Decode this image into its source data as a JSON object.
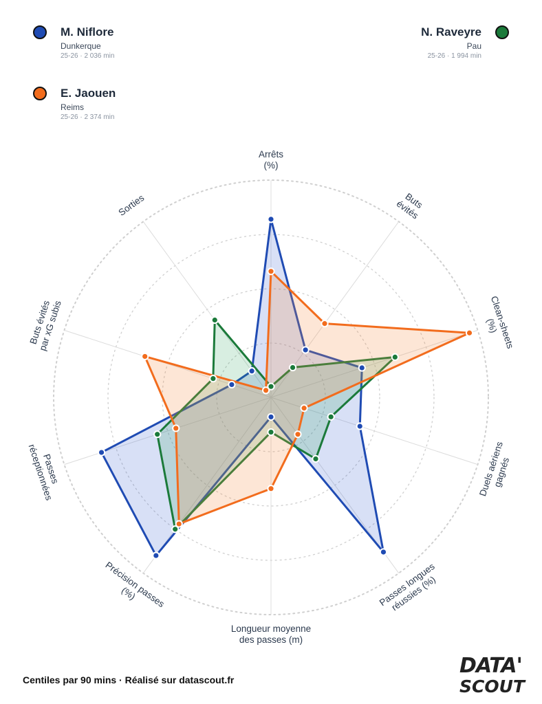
{
  "players": [
    {
      "id": "p1",
      "name": "M. Niflore",
      "club": "Dunkerque",
      "meta": "25-26 · 2 036 min",
      "color": "#1f4bb3",
      "fill": "rgba(60,100,210,0.20)"
    },
    {
      "id": "p2",
      "name": "N. Raveyre",
      "club": "Pau",
      "meta": "25-26 · 1 994 min",
      "color": "#1b7a3a",
      "fill": "rgba(40,160,90,0.18)"
    },
    {
      "id": "p3",
      "name": "E. Jaouen",
      "club": "Reims",
      "meta": "25-26 · 2 374 min",
      "color": "#f26c1d",
      "fill": "rgba(245,140,70,0.22)"
    }
  ],
  "chart_data": {
    "type": "radar",
    "axes": [
      [
        "Arrêts",
        "(%)"
      ],
      [
        "Buts",
        "évités"
      ],
      [
        "Clean-sheets",
        "(%)"
      ],
      [
        "Duels aériens",
        "gagnés"
      ],
      [
        "Passes longues",
        "réussies (%)"
      ],
      [
        "Longueur moyenne",
        "des passes (m)"
      ],
      [
        "Précision passes",
        "(%)"
      ],
      [
        "Passes",
        "réceptionnées"
      ],
      [
        "Buts évités",
        "par xG subis"
      ],
      [
        "Sorties"
      ]
    ],
    "range": [
      0,
      100
    ],
    "grid": "dotted circles at 25/50/75/100",
    "series": [
      {
        "name": "M. Niflore",
        "values": [
          82,
          27,
          44,
          43,
          88,
          9,
          90,
          82,
          19,
          15
        ]
      },
      {
        "name": "N. Raveyre",
        "values": [
          5,
          17,
          60,
          29,
          35,
          16,
          75,
          55,
          28,
          44
        ]
      },
      {
        "name": "E. Jaouen",
        "values": [
          58,
          42,
          96,
          16,
          21,
          42,
          72,
          46,
          61,
          4
        ]
      }
    ]
  },
  "footer": "Centiles par 90 mins · Réalisé sur datascout.fr",
  "logo": {
    "line1": "DATA'",
    "line2": "SCOUT"
  }
}
